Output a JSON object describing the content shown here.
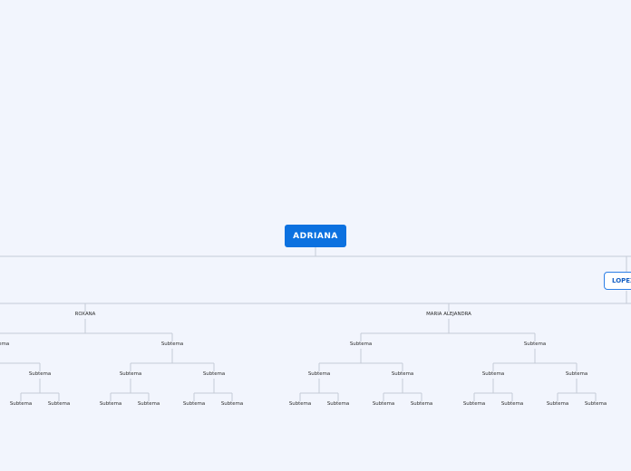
{
  "root": {
    "label": "ADRIANA"
  },
  "main_topic": {
    "label": "LOPEZ"
  },
  "subtopics": {
    "left": "ROXANA",
    "right": "MARIA ALEJANDRA"
  },
  "subtema": "Subtema",
  "colors": {
    "background": "#f2f5fd",
    "root_fill": "#0c71e0",
    "main_topic_border": "#2d7fe6",
    "connector": "#c4cad6"
  }
}
